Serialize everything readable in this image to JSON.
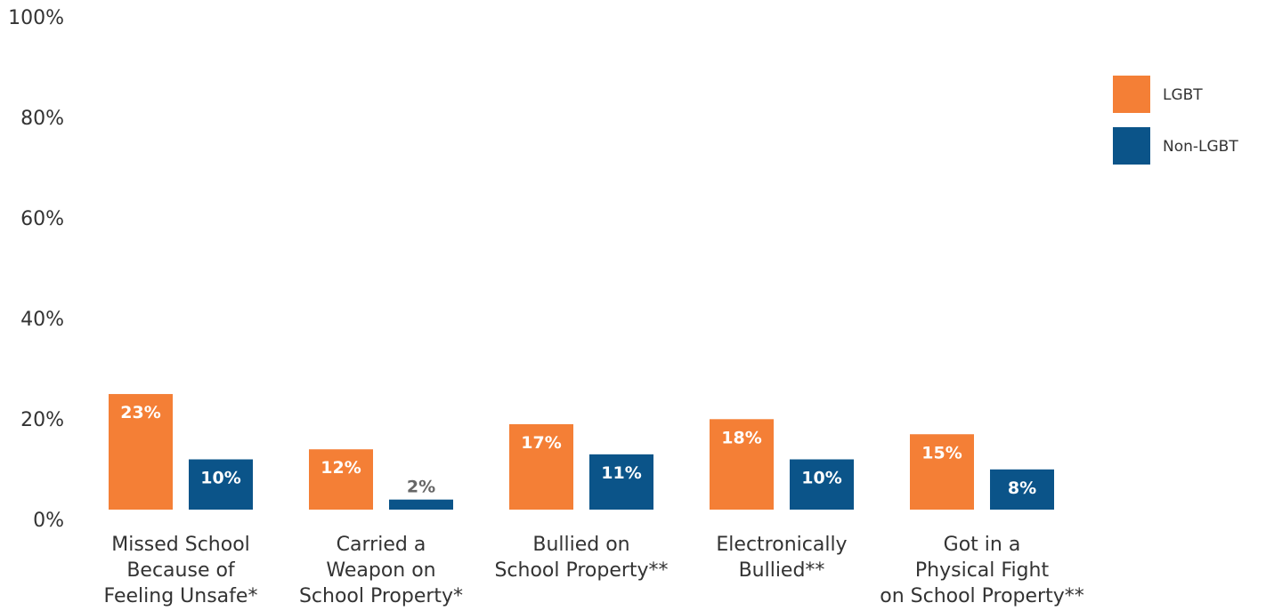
{
  "chart_data": {
    "type": "bar",
    "categories": [
      [
        "Missed School",
        "Because of",
        "Feeling Unsafe*"
      ],
      [
        "Carried a",
        "Weapon on",
        "School Property*"
      ],
      [
        "Bullied on",
        "School Property**"
      ],
      [
        "Electronically",
        "Bullied**"
      ],
      [
        "Got in a",
        "Physical Fight",
        "on School Property**"
      ]
    ],
    "series": [
      {
        "name": "LGBT",
        "color": "#F47F36",
        "values": [
          23,
          12,
          17,
          18,
          15
        ],
        "labels": [
          "23%",
          "12%",
          "17%",
          "18%",
          "15%"
        ]
      },
      {
        "name": "Non-LGBT",
        "color": "#0B5489",
        "values": [
          10,
          2,
          11,
          10,
          8
        ],
        "labels": [
          "10%",
          "2%",
          "11%",
          "10%",
          "8%"
        ]
      }
    ],
    "ylim": [
      0,
      100
    ],
    "yticks": [
      0,
      20,
      40,
      60,
      80,
      100
    ],
    "ytick_labels": [
      "0%",
      "20%",
      "40%",
      "60%",
      "80%",
      "100%"
    ],
    "small_value_label_color": "#666666",
    "legend_position": "top-right",
    "grid": false
  }
}
